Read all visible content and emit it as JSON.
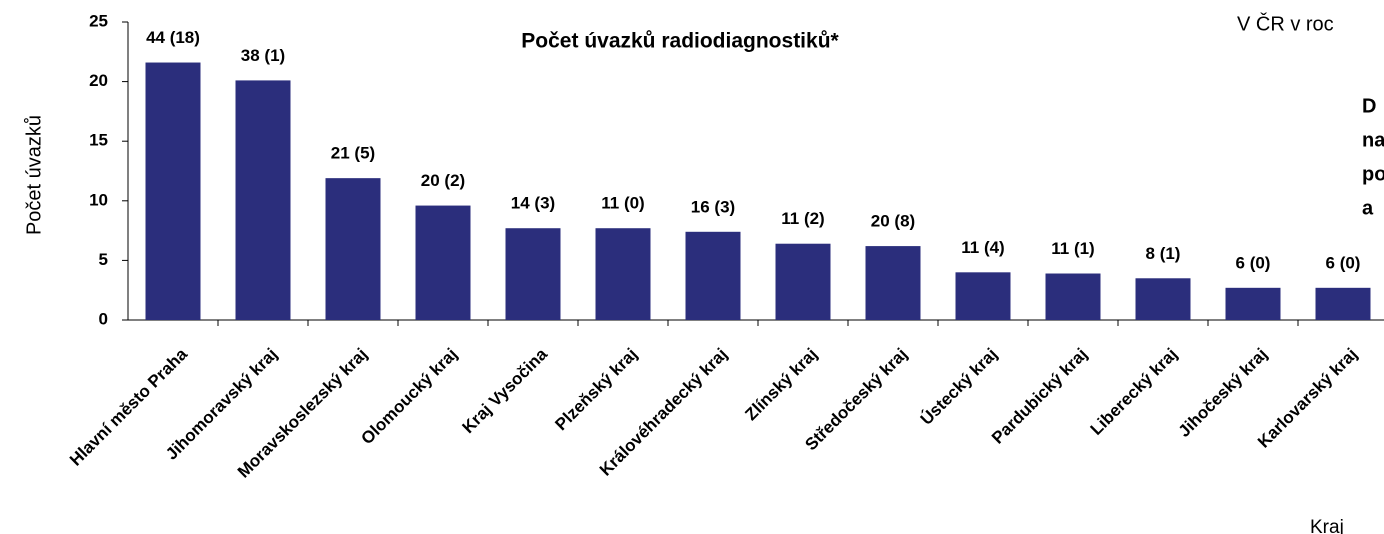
{
  "chart_data": {
    "type": "bar",
    "title": "Počet úvazků radiodiagnostiků*",
    "y_label": "Počet úvazků",
    "x_label": "Kraj",
    "note_top": "V ČR v roc",
    "note_side": [
      "D",
      "na",
      "po",
      "a"
    ],
    "categories": [
      "Hlavní město Praha",
      "Jihomoravský kraj",
      "Moravskoslezský kraj",
      "Olomoucký kraj",
      "Kraj Vysočina",
      "Plzeňský kraj",
      "Královéhradecký kraj",
      "Zlínský kraj",
      "Středočeský kraj",
      "Ústecký kraj",
      "Pardubický kraj",
      "Liberecký kraj",
      "Jihočeský kraj",
      "Karlovarský kraj"
    ],
    "values": [
      21.6,
      20.1,
      11.9,
      9.6,
      7.7,
      7.7,
      7.4,
      6.4,
      6.2,
      4.0,
      3.9,
      3.5,
      2.7,
      2.7
    ],
    "bar_annotations": [
      "44 (18)",
      "38 (1)",
      "21 (5)",
      "20 (2)",
      "14 (3)",
      "11 (0)",
      "16 (3)",
      "11 (2)",
      "20 (8)",
      "11 (4)",
      "11 (1)",
      "8 (1)",
      "6 (0)",
      "6 (0)"
    ],
    "color": "#2b2e7c",
    "ylim": [
      0,
      25
    ],
    "yticks": [
      0,
      5,
      10,
      15,
      20,
      25
    ]
  }
}
